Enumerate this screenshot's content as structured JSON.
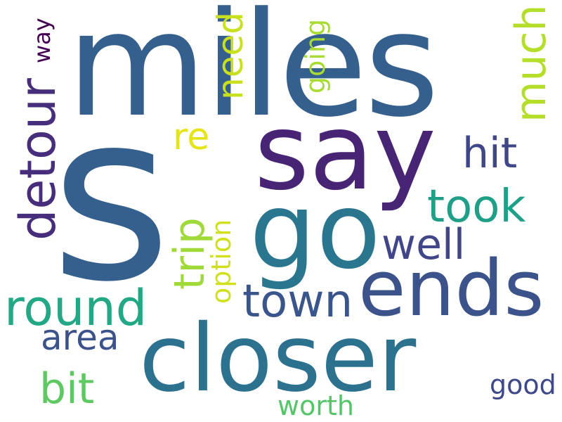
{
  "words": [
    {
      "text": "s",
      "color": "#35608d"
    },
    {
      "text": "miles",
      "color": "#35608d"
    },
    {
      "text": "say",
      "color": "#482475"
    },
    {
      "text": "go",
      "color": "#2a768e"
    },
    {
      "text": "closer",
      "color": "#2c728e"
    },
    {
      "text": "ends",
      "color": "#3b528b"
    },
    {
      "text": "detour",
      "color": "#472e7c"
    },
    {
      "text": "round",
      "color": "#22a884"
    },
    {
      "text": "town",
      "color": "#39558c"
    },
    {
      "text": "took",
      "color": "#1f9f88"
    },
    {
      "text": "well",
      "color": "#404688"
    },
    {
      "text": "hit",
      "color": "#3f4788"
    },
    {
      "text": "much",
      "color": "#b5de2b"
    },
    {
      "text": "trip",
      "color": "#a0da39"
    },
    {
      "text": "bit",
      "color": "#5ec962"
    },
    {
      "text": "area",
      "color": "#3b528b"
    },
    {
      "text": "need",
      "color": "#c8e020"
    },
    {
      "text": "re",
      "color": "#e5e419"
    },
    {
      "text": "going",
      "color": "#a8db34"
    },
    {
      "text": "option",
      "color": "#d0e11c"
    },
    {
      "text": "way",
      "color": "#440154"
    },
    {
      "text": "worth",
      "color": "#54c568"
    },
    {
      "text": "good",
      "color": "#3e4989"
    }
  ]
}
